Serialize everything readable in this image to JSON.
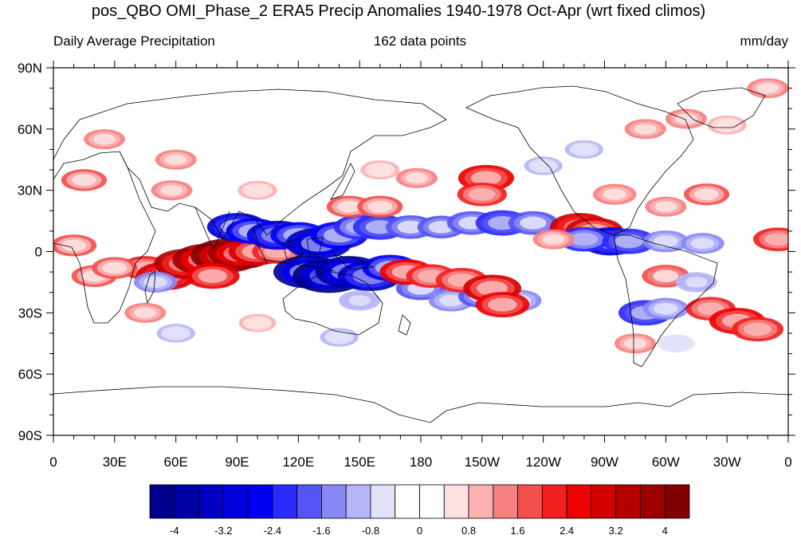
{
  "chart_data": {
    "type": "heatmap",
    "title": "pos_QBO OMI_Phase_2 ERA5 Precip Anomalies 1940-1978 Oct-Apr (wrt fixed climos)",
    "subtitle_left": "Daily Average Precipitation",
    "subtitle_center": "162 data points",
    "subtitle_right": "mm/day",
    "x_ticks": [
      "0",
      "30E",
      "60E",
      "90E",
      "120E",
      "150E",
      "180",
      "150W",
      "120W",
      "90W",
      "60W",
      "30W",
      "0"
    ],
    "y_ticks": [
      "90N",
      "60N",
      "30N",
      "0",
      "30S",
      "60S",
      "90S"
    ],
    "x_range": [
      0,
      360
    ],
    "y_range": [
      -90,
      90
    ],
    "colorbar": {
      "min": -4.4,
      "max": 4.4,
      "step": 0.4,
      "tick_labels": [
        "-4",
        "-3.2",
        "-2.4",
        "-1.6",
        "-0.8",
        "0",
        "0.8",
        "1.6",
        "2.4",
        "3.2",
        "4"
      ],
      "colors": [
        "#00008a",
        "#0000a8",
        "#0000c2",
        "#0000dd",
        "#0000f5",
        "#2b2bff",
        "#5555f5",
        "#8989f5",
        "#b5b5f7",
        "#e1e1f9",
        "#ffffff",
        "#ffffff",
        "#fde0e0",
        "#fbb2b2",
        "#f78080",
        "#f44f4f",
        "#f22020",
        "#ec0000",
        "#d20000",
        "#b60000",
        "#9c0000",
        "#820000"
      ]
    },
    "anomalies": [
      {
        "lon": 45,
        "lat": -8,
        "value": 2.0
      },
      {
        "lon": 55,
        "lat": -12,
        "value": 3.0
      },
      {
        "lon": 65,
        "lat": -6,
        "value": 3.4
      },
      {
        "lon": 75,
        "lat": -4,
        "value": 3.8
      },
      {
        "lon": 85,
        "lat": -2,
        "value": 4.2
      },
      {
        "lon": 92,
        "lat": -1,
        "value": 3.6
      },
      {
        "lon": 100,
        "lat": 0,
        "value": 2.8
      },
      {
        "lon": 110,
        "lat": 0,
        "value": 2.2
      },
      {
        "lon": 20,
        "lat": -12,
        "value": 1.6
      },
      {
        "lon": 30,
        "lat": -8,
        "value": 1.6
      },
      {
        "lon": 10,
        "lat": 3,
        "value": 1.6
      },
      {
        "lon": 78,
        "lat": -12,
        "value": 2.4
      },
      {
        "lon": 50,
        "lat": -15,
        "value": -1.4
      },
      {
        "lon": 90,
        "lat": 12,
        "value": -3.0
      },
      {
        "lon": 98,
        "lat": 10,
        "value": -2.5
      },
      {
        "lon": 110,
        "lat": 8,
        "value": -3.2
      },
      {
        "lon": 120,
        "lat": 8,
        "value": -2.6
      },
      {
        "lon": 130,
        "lat": 4,
        "value": -3.6
      },
      {
        "lon": 140,
        "lat": 8,
        "value": -2.8
      },
      {
        "lon": 150,
        "lat": 12,
        "value": -2.2
      },
      {
        "lon": 160,
        "lat": 12,
        "value": -2.4
      },
      {
        "lon": 175,
        "lat": 12,
        "value": -2.0
      },
      {
        "lon": 190,
        "lat": 12,
        "value": -1.8
      },
      {
        "lon": 205,
        "lat": 14,
        "value": -2.0
      },
      {
        "lon": 220,
        "lat": 14,
        "value": -2.4
      },
      {
        "lon": 235,
        "lat": 14,
        "value": -2.0
      },
      {
        "lon": 125,
        "lat": -10,
        "value": -4.0
      },
      {
        "lon": 135,
        "lat": -12,
        "value": -4.2
      },
      {
        "lon": 145,
        "lat": -10,
        "value": -3.8
      },
      {
        "lon": 155,
        "lat": -12,
        "value": -3.4
      },
      {
        "lon": 165,
        "lat": -8,
        "value": -2.6
      },
      {
        "lon": 180,
        "lat": -18,
        "value": -2.0
      },
      {
        "lon": 195,
        "lat": -24,
        "value": -1.6
      },
      {
        "lon": 210,
        "lat": -22,
        "value": -1.8
      },
      {
        "lon": 228,
        "lat": -24,
        "value": -1.6
      },
      {
        "lon": 150,
        "lat": -24,
        "value": -1.2
      },
      {
        "lon": 173,
        "lat": -10,
        "value": 2.4
      },
      {
        "lon": 185,
        "lat": -12,
        "value": 2.0
      },
      {
        "lon": 200,
        "lat": -14,
        "value": 2.2
      },
      {
        "lon": 215,
        "lat": -18,
        "value": 2.8
      },
      {
        "lon": 220,
        "lat": -26,
        "value": 2.4
      },
      {
        "lon": 212,
        "lat": 36,
        "value": 2.6
      },
      {
        "lon": 210,
        "lat": 28,
        "value": 2.0
      },
      {
        "lon": 145,
        "lat": 22,
        "value": 1.6
      },
      {
        "lon": 160,
        "lat": 22,
        "value": 1.6
      },
      {
        "lon": 258,
        "lat": 12,
        "value": 3.0
      },
      {
        "lon": 265,
        "lat": 10,
        "value": 2.8
      },
      {
        "lon": 273,
        "lat": 5,
        "value": -3.0
      },
      {
        "lon": 260,
        "lat": 6,
        "value": -2.2
      },
      {
        "lon": 282,
        "lat": 5,
        "value": -2.4
      },
      {
        "lon": 245,
        "lat": 6,
        "value": 1.2
      },
      {
        "lon": 300,
        "lat": 5,
        "value": -1.6
      },
      {
        "lon": 318,
        "lat": 4,
        "value": -1.4
      },
      {
        "lon": 300,
        "lat": -12,
        "value": 1.8
      },
      {
        "lon": 290,
        "lat": -30,
        "value": -2.4
      },
      {
        "lon": 300,
        "lat": -28,
        "value": -1.6
      },
      {
        "lon": 322,
        "lat": -28,
        "value": 2.0
      },
      {
        "lon": 335,
        "lat": -34,
        "value": 2.6
      },
      {
        "lon": 345,
        "lat": -38,
        "value": 2.2
      },
      {
        "lon": 320,
        "lat": 28,
        "value": 1.6
      },
      {
        "lon": 300,
        "lat": 22,
        "value": 1.2
      },
      {
        "lon": 275,
        "lat": 28,
        "value": 1.4
      },
      {
        "lon": 15,
        "lat": 35,
        "value": 1.6
      },
      {
        "lon": 25,
        "lat": 55,
        "value": 1.2
      },
      {
        "lon": 60,
        "lat": 45,
        "value": 1.2
      },
      {
        "lon": 58,
        "lat": 30,
        "value": 1.2
      },
      {
        "lon": 100,
        "lat": 30,
        "value": 1.0
      },
      {
        "lon": 178,
        "lat": 36,
        "value": 1.2
      },
      {
        "lon": 160,
        "lat": 40,
        "value": 1.0
      },
      {
        "lon": 290,
        "lat": 60,
        "value": 1.2
      },
      {
        "lon": 310,
        "lat": 65,
        "value": 1.2
      },
      {
        "lon": 330,
        "lat": 62,
        "value": 1.0
      },
      {
        "lon": 350,
        "lat": 80,
        "value": 1.2
      },
      {
        "lon": 285,
        "lat": -45,
        "value": 1.2
      },
      {
        "lon": 45,
        "lat": -30,
        "value": 1.2
      },
      {
        "lon": 100,
        "lat": -35,
        "value": 0.8
      },
      {
        "lon": 60,
        "lat": -40,
        "value": -0.9
      },
      {
        "lon": 140,
        "lat": -42,
        "value": -0.9
      },
      {
        "lon": 260,
        "lat": 50,
        "value": -0.9
      },
      {
        "lon": 240,
        "lat": 42,
        "value": -0.9
      },
      {
        "lon": 305,
        "lat": -45,
        "value": -0.8
      },
      {
        "lon": 355,
        "lat": 6,
        "value": 2.0
      },
      {
        "lon": 315,
        "lat": -15,
        "value": -1.2
      }
    ]
  }
}
